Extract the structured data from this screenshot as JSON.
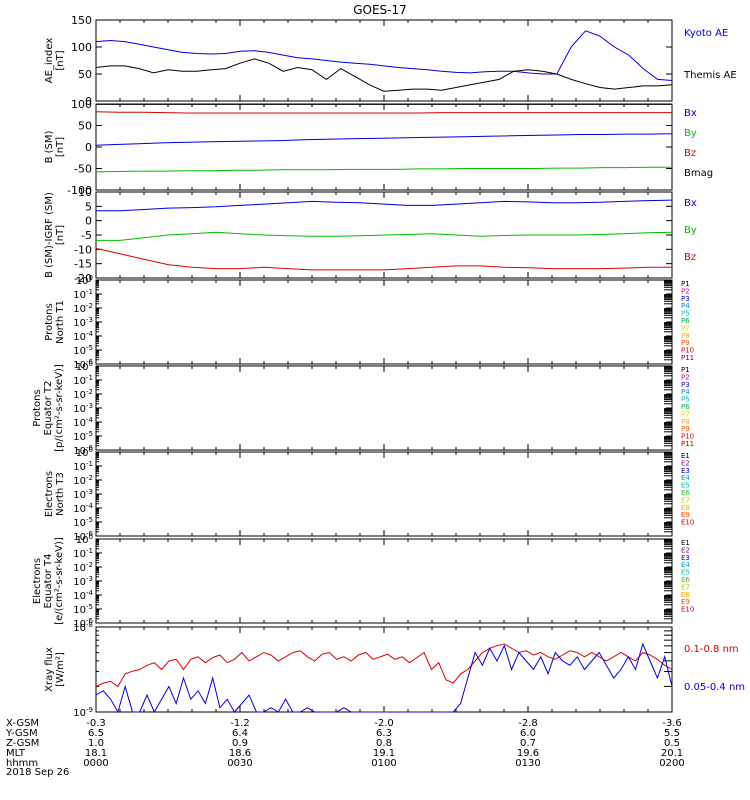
{
  "title": "GOES-17",
  "date_label": "2018 Sep 26",
  "colors": {
    "black": "#000000",
    "blue": "#0000dd",
    "green": "#00bb00",
    "red": "#dd0000"
  },
  "chart_data": [
    {
      "type": "line",
      "ylabel": "AE_index [nT]",
      "ylim": [
        0,
        150
      ],
      "yticks": [
        "150",
        "100",
        "50",
        "0"
      ],
      "series": [
        {
          "name": "Kyoto AE",
          "color": "#0000dd",
          "values": [
            110,
            112,
            110,
            105,
            100,
            95,
            90,
            88,
            87,
            88,
            92,
            93,
            90,
            85,
            80,
            78,
            75,
            72,
            70,
            68,
            65,
            62,
            60,
            58,
            55,
            53,
            52,
            54,
            55,
            55,
            52,
            50,
            50,
            100,
            130,
            120,
            100,
            85,
            60,
            40,
            38
          ]
        },
        {
          "name": "Themis AE",
          "color": "#000000",
          "values": [
            62,
            65,
            65,
            60,
            52,
            58,
            55,
            55,
            58,
            60,
            70,
            78,
            70,
            55,
            62,
            58,
            40,
            60,
            45,
            30,
            18,
            20,
            22,
            22,
            20,
            25,
            30,
            35,
            40,
            55,
            58,
            55,
            50,
            40,
            32,
            25,
            22,
            25,
            28,
            28,
            30
          ]
        }
      ]
    },
    {
      "type": "line",
      "ylabel": "B (SM) [nT]",
      "ylim": [
        -100,
        100
      ],
      "yticks": [
        "100",
        "50",
        "0",
        "-50",
        "-100"
      ],
      "series": [
        {
          "name": "Bx",
          "color": "#0000dd",
          "values": [
            4,
            6,
            8,
            10,
            11,
            12,
            13,
            14,
            15,
            17,
            18,
            19,
            20,
            21,
            22,
            23,
            24,
            25,
            26,
            27,
            28,
            29,
            29,
            30,
            30,
            31
          ]
        },
        {
          "name": "By",
          "color": "#00bb00",
          "values": [
            -58,
            -57,
            -56,
            -56,
            -55,
            -55,
            -54,
            -54,
            -53,
            -53,
            -53,
            -52,
            -52,
            -52,
            -51,
            -51,
            -50,
            -50,
            -50,
            -50,
            -49,
            -49,
            -48,
            -48,
            -47,
            -47
          ]
        },
        {
          "name": "Bz",
          "color": "#dd0000",
          "values": [
            82,
            81,
            81,
            80,
            79,
            79,
            79,
            79,
            79,
            79,
            79,
            79,
            79,
            79,
            79,
            80,
            80,
            80,
            80,
            80,
            80,
            80,
            80,
            80,
            80,
            80
          ]
        },
        {
          "name": "Bmag",
          "color": "#000000",
          "values": [
            99,
            99,
            99,
            99,
            99,
            99,
            99,
            99,
            99,
            99,
            99,
            99,
            99,
            99,
            99,
            99,
            99,
            99,
            99,
            99,
            99,
            99,
            99,
            99,
            99,
            99
          ]
        }
      ]
    },
    {
      "type": "line",
      "ylabel": "B (SM)-IGRF (SM) [nT]",
      "ylim": [
        -22,
        10
      ],
      "yticks": [
        "10",
        "5",
        "0",
        "-5",
        "-10",
        "-15",
        "-20"
      ],
      "series": [
        {
          "name": "Bx",
          "color": "#0000dd",
          "values": [
            3,
            3,
            3.5,
            4,
            4.2,
            4.5,
            5,
            5.5,
            6,
            6.5,
            6.2,
            6,
            5.5,
            5,
            5,
            5.5,
            6,
            6.5,
            6.3,
            6,
            6,
            6.2,
            6.5,
            6.8,
            7
          ]
        },
        {
          "name": "By",
          "color": "#00bb00",
          "values": [
            -8,
            -8,
            -7,
            -6,
            -5.5,
            -5,
            -5.5,
            -6,
            -6.3,
            -6.5,
            -6.5,
            -6.3,
            -6,
            -5.8,
            -5.5,
            -6,
            -6.5,
            -6.2,
            -6,
            -6,
            -6,
            -5.8,
            -5.5,
            -5.2,
            -5
          ]
        },
        {
          "name": "Bz",
          "color": "#dd0000",
          "values": [
            -11,
            -13,
            -15,
            -17,
            -18,
            -18.5,
            -18.5,
            -18,
            -18.5,
            -19,
            -19,
            -19,
            -19,
            -18.5,
            -18,
            -17.5,
            -17.5,
            -18,
            -18.2,
            -18.5,
            -18.5,
            -18.5,
            -18.3,
            -18,
            -18
          ]
        }
      ]
    },
    {
      "type": "line",
      "ylabel": "Protons North T1",
      "ylim": [
        -6,
        0
      ],
      "yticks": [
        "10^0",
        "10^-1",
        "10^-2",
        "10^-3",
        "10^-4",
        "10^-5",
        "10^-6"
      ],
      "series": [],
      "legend": [
        "P1",
        "P2",
        "P3",
        "P4",
        "P5",
        "P6",
        "P7",
        "P8",
        "P9",
        "P10",
        "P11"
      ]
    },
    {
      "type": "line",
      "ylabel": "Protons Equator T2 [p/(cm^2-s-sr-keV)]",
      "ylim": [
        -6,
        0
      ],
      "yticks": [
        "10^0",
        "10^-1",
        "10^-2",
        "10^-3",
        "10^-4",
        "10^-5",
        "10^-6"
      ],
      "series": [],
      "legend": [
        "P1",
        "P2",
        "P3",
        "P4",
        "P5",
        "P6",
        "P7",
        "P8",
        "P9",
        "P10",
        "P11"
      ]
    },
    {
      "type": "line",
      "ylabel": "Electrons North T3",
      "ylim": [
        -6,
        0
      ],
      "yticks": [
        "10^0",
        "10^-1",
        "10^-2",
        "10^-3",
        "10^-4",
        "10^-5",
        "10^-6"
      ],
      "series": [],
      "legend": [
        "E1",
        "E2",
        "E3",
        "E4",
        "E5",
        "E6",
        "E7",
        "E8",
        "E9",
        "E10"
      ]
    },
    {
      "type": "line",
      "ylabel": "Electrons Equator T4 [e/(cm^2-s-sr-keV)]",
      "ylim": [
        -6,
        0
      ],
      "yticks": [
        "10^0",
        "10^-1",
        "10^-2",
        "10^-3",
        "10^-4",
        "10^-5",
        "10^-6"
      ],
      "series": [],
      "legend": [
        "E1",
        "E2",
        "E3",
        "E4",
        "E5",
        "E6",
        "E7",
        "E8",
        "E9",
        "E10"
      ]
    },
    {
      "type": "line",
      "ylabel": "Xray flux [W/m^2]",
      "ylim": [
        -9,
        -8
      ],
      "yticks": [
        "10^-8",
        "10^-9"
      ],
      "series": [
        {
          "name": "0.1-0.8 nm",
          "color": "#dd0000",
          "values": [
            -8.7,
            -8.66,
            -8.64,
            -8.7,
            -8.55,
            -8.52,
            -8.5,
            -8.45,
            -8.42,
            -8.5,
            -8.4,
            -8.38,
            -8.5,
            -8.38,
            -8.35,
            -8.42,
            -8.36,
            -8.33,
            -8.42,
            -8.38,
            -8.3,
            -8.4,
            -8.35,
            -8.3,
            -8.33,
            -8.4,
            -8.35,
            -8.3,
            -8.28,
            -8.35,
            -8.4,
            -8.32,
            -8.3,
            -8.38,
            -8.35,
            -8.4,
            -8.33,
            -8.3,
            -8.38,
            -8.35,
            -8.32,
            -8.38,
            -8.35,
            -8.42,
            -8.36,
            -8.3,
            -8.5,
            -8.42,
            -8.62,
            -8.66,
            -8.55,
            -8.5,
            -8.4,
            -8.3,
            -8.25,
            -8.22,
            -8.2,
            -8.25,
            -8.3,
            -8.28,
            -8.33,
            -8.3,
            -8.35,
            -8.38,
            -8.33,
            -8.28,
            -8.3,
            -8.35,
            -8.3,
            -8.35,
            -8.4,
            -8.35,
            -8.3,
            -8.35,
            -8.4,
            -8.3,
            -8.33,
            -8.38,
            -8.45,
            -8.5
          ]
        },
        {
          "name": "0.05-0.4 nm",
          "color": "#0000dd",
          "values": [
            -8.8,
            -8.75,
            -8.85,
            -9.0,
            -8.7,
            -9.0,
            -9.0,
            -8.8,
            -9.0,
            -8.85,
            -8.7,
            -8.9,
            -8.6,
            -8.85,
            -8.75,
            -8.9,
            -8.6,
            -8.95,
            -8.85,
            -9.0,
            -8.9,
            -8.8,
            -9.0,
            -9.0,
            -8.95,
            -9.0,
            -8.85,
            -9.0,
            -9.0,
            -8.95,
            -9.0,
            -9.0,
            -9.0,
            -9.0,
            -8.95,
            -9.0,
            -9.0,
            -9.0,
            -9.0,
            -9.0,
            -9.0,
            -9.0,
            -9.0,
            -9.0,
            -9.0,
            -9.0,
            -9.0,
            -9.0,
            -9.0,
            -9.0,
            -8.9,
            -8.6,
            -8.3,
            -8.45,
            -8.25,
            -8.4,
            -8.22,
            -8.5,
            -8.3,
            -8.4,
            -8.5,
            -8.35,
            -8.55,
            -8.3,
            -8.4,
            -8.45,
            -8.35,
            -8.5,
            -8.4,
            -8.3,
            -8.45,
            -8.6,
            -8.5,
            -8.35,
            -8.5,
            -8.2,
            -8.4,
            -8.6,
            -8.35,
            -8.7
          ]
        }
      ]
    }
  ],
  "orbit_table": {
    "labels": [
      "X-GSM",
      "Y-GSM",
      "Z-GSM",
      "MLT",
      "hhmm"
    ],
    "columns": [
      [
        "-0.3",
        "6.5",
        "1.0",
        "18.1",
        "0000"
      ],
      [
        "-1.2",
        "6.4",
        "0.9",
        "18.6",
        "0030"
      ],
      [
        "-2.0",
        "6.3",
        "0.8",
        "19.1",
        "0100"
      ],
      [
        "-2.8",
        "6.0",
        "0.7",
        "19.6",
        "0130"
      ],
      [
        "-3.6",
        "5.5",
        "0.5",
        "20.1",
        "0200"
      ]
    ]
  },
  "legend_labels": {
    "panel1": [
      "Kyoto AE",
      "Themis AE"
    ],
    "panel2": [
      "Bx",
      "By",
      "Bz",
      "Bmag"
    ],
    "panel3": [
      "Bx",
      "By",
      "Bz"
    ],
    "panel8": [
      "0.1-0.8 nm",
      "0.05-0.4 nm"
    ]
  },
  "ticks_text": {
    "panel1": [
      "150",
      "100",
      "50",
      "0"
    ],
    "panel2": [
      "100",
      "50",
      "0",
      "-50",
      "-100"
    ],
    "panel3": [
      "10",
      "5",
      "0",
      "-5",
      "-10",
      "-15",
      "-20"
    ]
  }
}
